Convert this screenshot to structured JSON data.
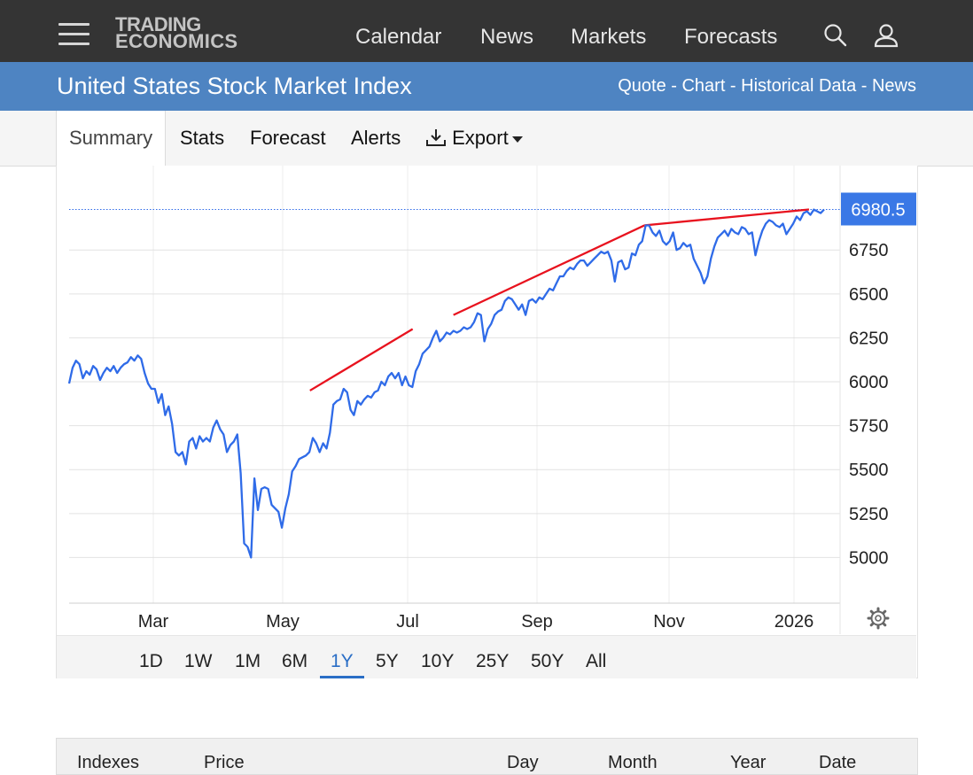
{
  "nav": {
    "logo_line1": "TRADING",
    "logo_line2": "ECONOMICS",
    "links": [
      "Calendar",
      "News",
      "Markets",
      "Forecasts"
    ]
  },
  "header": {
    "title": "United States Stock Market Index",
    "links": [
      "Quote",
      "Chart",
      "Historical Data",
      "News"
    ],
    "separator": " - "
  },
  "tabs": [
    "Summary",
    "Stats",
    "Forecast",
    "Alerts",
    "Export"
  ],
  "active_tab": "Summary",
  "ranges": [
    "1D",
    "1W",
    "1M",
    "6M",
    "1Y",
    "5Y",
    "10Y",
    "25Y",
    "50Y",
    "All"
  ],
  "active_range": "1Y",
  "table_headers": [
    "Indexes",
    "Price",
    "Day",
    "Month",
    "Year",
    "Date"
  ],
  "colors": {
    "nav_bg": "#343434",
    "title_bg": "#4e84c2",
    "line": "#2f6be8",
    "trendline": "#e8121e",
    "price_tag": "#3a78e6"
  },
  "chart_data": {
    "type": "line",
    "x_ticks": [
      "Mar",
      "May",
      "Jul",
      "Sep",
      "Nov",
      "2026"
    ],
    "y_ticks": [
      5000,
      5250,
      5500,
      5750,
      6000,
      6250,
      6500,
      6750
    ],
    "ylim": [
      4740,
      7230
    ],
    "last_value_label": "6980.5",
    "last_value": 6980.5,
    "grid": true,
    "series": [
      {
        "values": [
          5990,
          6080,
          6120,
          6100,
          6020,
          6060,
          6040,
          6090,
          6070,
          6010,
          6050,
          6080,
          6060,
          6090,
          6050,
          6080,
          6100,
          6110,
          6140,
          6120,
          6150,
          6130,
          6050,
          5990,
          5960,
          5960,
          5880,
          5930,
          5810,
          5860,
          5760,
          5600,
          5580,
          5600,
          5530,
          5660,
          5680,
          5620,
          5690,
          5660,
          5680,
          5660,
          5740,
          5780,
          5730,
          5700,
          5600,
          5640,
          5660,
          5700,
          5480,
          5080,
          5060,
          5000,
          5450,
          5270,
          5390,
          5400,
          5390,
          5300,
          5280,
          5260,
          5170,
          5280,
          5360,
          5490,
          5520,
          5560,
          5570,
          5580,
          5600,
          5680,
          5650,
          5600,
          5650,
          5620,
          5710,
          5870,
          5890,
          5900,
          5960,
          5940,
          5840,
          5810,
          5890,
          5870,
          5900,
          5920,
          5910,
          5940,
          5950,
          6000,
          5980,
          6030,
          6050,
          6020,
          6050,
          5980,
          6030,
          5980,
          5970,
          6060,
          6100,
          6160,
          6180,
          6200,
          6250,
          6290,
          6230,
          6250,
          6280,
          6270,
          6290,
          6280,
          6290,
          6310,
          6300,
          6310,
          6340,
          6390,
          6380,
          6230,
          6300,
          6330,
          6380,
          6400,
          6410,
          6460,
          6480,
          6470,
          6440,
          6410,
          6440,
          6380,
          6460,
          6470,
          6450,
          6480,
          6470,
          6500,
          6530,
          6520,
          6560,
          6600,
          6600,
          6630,
          6650,
          6640,
          6670,
          6690,
          6690,
          6660,
          6680,
          6700,
          6720,
          6740,
          6730,
          6740,
          6690,
          6570,
          6680,
          6690,
          6640,
          6650,
          6730,
          6720,
          6780,
          6800,
          6890,
          6890,
          6850,
          6830,
          6860,
          6800,
          6780,
          6800,
          6850,
          6750,
          6760,
          6790,
          6770,
          6780,
          6700,
          6660,
          6620,
          6560,
          6600,
          6700,
          6770,
          6820,
          6840,
          6860,
          6830,
          6870,
          6850,
          6840,
          6880,
          6870,
          6840,
          6850,
          6720,
          6800,
          6860,
          6900,
          6920,
          6910,
          6890,
          6880,
          6900,
          6840,
          6870,
          6900,
          6940,
          6920,
          6960,
          6970,
          6950,
          6980,
          6970,
          6960,
          6980.5
        ]
      }
    ],
    "trendlines": [
      {
        "x": [
          0.319,
          0.455
        ],
        "y": [
          5950,
          6300
        ]
      },
      {
        "x": [
          0.509,
          0.762
        ],
        "y": [
          6380,
          6890
        ]
      },
      {
        "x": [
          0.762,
          0.98
        ],
        "y": [
          6890,
          6980.5
        ]
      }
    ]
  }
}
